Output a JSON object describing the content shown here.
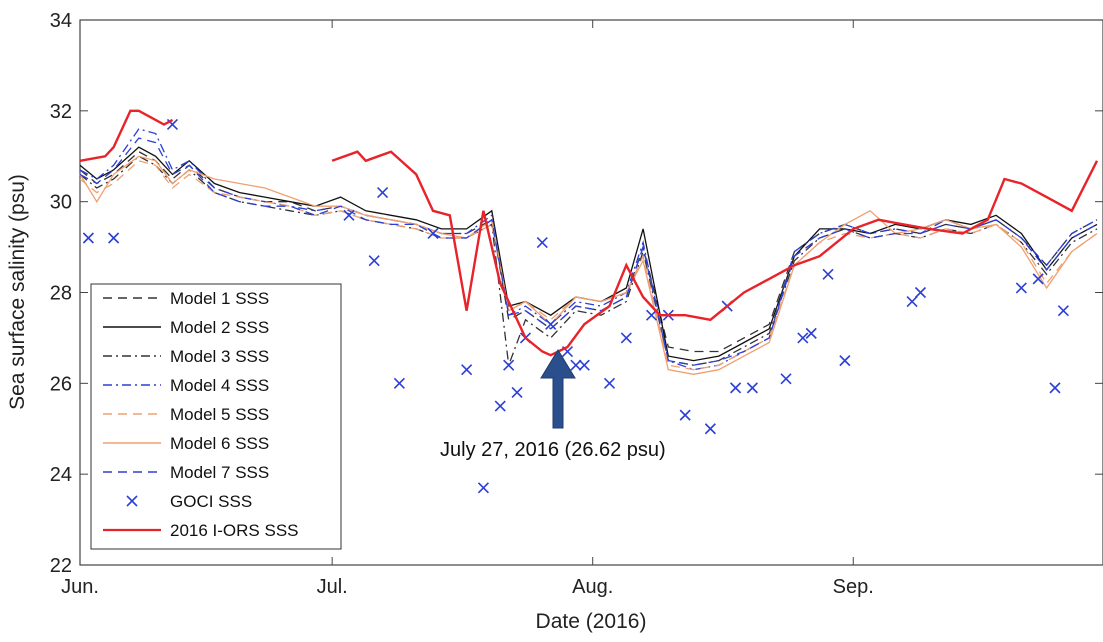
{
  "chart_data": {
    "type": "line",
    "title": "",
    "xlabel": "Date (2016)",
    "ylabel": "Sea surface salinity (psu)",
    "xlim": [
      "2016-06-01",
      "2016-09-30"
    ],
    "ylim": [
      22,
      34
    ],
    "y_ticks": [
      22,
      24,
      26,
      28,
      30,
      32,
      34
    ],
    "x_ticks": [
      {
        "date": "2016-06-01",
        "label": "Jun."
      },
      {
        "date": "2016-07-01",
        "label": "Jul."
      },
      {
        "date": "2016-08-01",
        "label": "Aug."
      },
      {
        "date": "2016-09-01",
        "label": "Sep."
      }
    ],
    "grid": false,
    "legend_position": "bottom-left",
    "annotation": {
      "text": "July 27, 2016 (26.62 psu)",
      "date": "2016-07-27",
      "value": 26.62
    },
    "series": [
      {
        "name": "Model 1 SSS",
        "style": "dashed",
        "color": "#333333",
        "dates": [
          "2016-06-01",
          "2016-06-03",
          "2016-06-05",
          "2016-06-08",
          "2016-06-10",
          "2016-06-12",
          "2016-06-14",
          "2016-06-17",
          "2016-06-20",
          "2016-06-23",
          "2016-06-26",
          "2016-06-29",
          "2016-07-02",
          "2016-07-05",
          "2016-07-08",
          "2016-07-11",
          "2016-07-14",
          "2016-07-17",
          "2016-07-20",
          "2016-07-22",
          "2016-07-24",
          "2016-07-27",
          "2016-07-30",
          "2016-08-02",
          "2016-08-05",
          "2016-08-07",
          "2016-08-10",
          "2016-08-13",
          "2016-08-16",
          "2016-08-19",
          "2016-08-22",
          "2016-08-25",
          "2016-08-28",
          "2016-08-31",
          "2016-09-03",
          "2016-09-06",
          "2016-09-09",
          "2016-09-12",
          "2016-09-15",
          "2016-09-18",
          "2016-09-21",
          "2016-09-24",
          "2016-09-27",
          "2016-09-30"
        ],
        "values": [
          30.7,
          30.4,
          30.6,
          31.1,
          30.9,
          30.5,
          30.8,
          30.3,
          30.1,
          30.0,
          30.0,
          29.8,
          29.9,
          29.7,
          29.6,
          29.5,
          29.3,
          29.3,
          29.6,
          27.4,
          27.6,
          27.2,
          27.7,
          27.6,
          27.9,
          29.0,
          26.8,
          26.7,
          26.7,
          27.0,
          27.3,
          28.9,
          29.3,
          29.5,
          29.3,
          29.4,
          29.3,
          29.5,
          29.4,
          29.6,
          29.2,
          28.6,
          29.3,
          29.6
        ]
      },
      {
        "name": "Model 2 SSS",
        "style": "solid",
        "color": "#111111",
        "dates": [
          "2016-06-01",
          "2016-06-03",
          "2016-06-05",
          "2016-06-08",
          "2016-06-10",
          "2016-06-12",
          "2016-06-14",
          "2016-06-17",
          "2016-06-20",
          "2016-06-23",
          "2016-06-26",
          "2016-06-29",
          "2016-07-02",
          "2016-07-05",
          "2016-07-08",
          "2016-07-11",
          "2016-07-14",
          "2016-07-17",
          "2016-07-20",
          "2016-07-22",
          "2016-07-24",
          "2016-07-27",
          "2016-07-30",
          "2016-08-02",
          "2016-08-05",
          "2016-08-07",
          "2016-08-10",
          "2016-08-13",
          "2016-08-16",
          "2016-08-19",
          "2016-08-22",
          "2016-08-25",
          "2016-08-28",
          "2016-08-31",
          "2016-09-03",
          "2016-09-06",
          "2016-09-09",
          "2016-09-12",
          "2016-09-15",
          "2016-09-18",
          "2016-09-21",
          "2016-09-24",
          "2016-09-27",
          "2016-09-30"
        ],
        "values": [
          30.8,
          30.5,
          30.7,
          31.2,
          31.0,
          30.6,
          30.9,
          30.4,
          30.2,
          30.1,
          30.0,
          29.9,
          30.1,
          29.8,
          29.7,
          29.6,
          29.4,
          29.4,
          29.8,
          27.7,
          27.8,
          27.5,
          27.9,
          27.8,
          28.1,
          29.4,
          26.6,
          26.5,
          26.6,
          26.9,
          27.2,
          28.8,
          29.4,
          29.4,
          29.3,
          29.5,
          29.4,
          29.6,
          29.5,
          29.7,
          29.3,
          28.5,
          29.2,
          29.5
        ]
      },
      {
        "name": "Model 3 SSS",
        "style": "dashdot",
        "color": "#333333",
        "dates": [
          "2016-06-01",
          "2016-06-03",
          "2016-06-05",
          "2016-06-08",
          "2016-06-10",
          "2016-06-12",
          "2016-06-14",
          "2016-06-17",
          "2016-06-20",
          "2016-06-23",
          "2016-06-26",
          "2016-06-29",
          "2016-07-02",
          "2016-07-05",
          "2016-07-08",
          "2016-07-11",
          "2016-07-14",
          "2016-07-17",
          "2016-07-20",
          "2016-07-22",
          "2016-07-24",
          "2016-07-27",
          "2016-07-30",
          "2016-08-02",
          "2016-08-05",
          "2016-08-07",
          "2016-08-10",
          "2016-08-13",
          "2016-08-16",
          "2016-08-19",
          "2016-08-22",
          "2016-08-25",
          "2016-08-28",
          "2016-08-31",
          "2016-09-03",
          "2016-09-06",
          "2016-09-09",
          "2016-09-12",
          "2016-09-15",
          "2016-09-18",
          "2016-09-21",
          "2016-09-24",
          "2016-09-27",
          "2016-09-30"
        ],
        "values": [
          30.6,
          30.3,
          30.5,
          31.0,
          30.8,
          30.4,
          30.7,
          30.2,
          30.0,
          29.9,
          29.8,
          29.7,
          29.8,
          29.6,
          29.5,
          29.4,
          29.2,
          29.2,
          29.5,
          26.4,
          27.4,
          27.0,
          27.6,
          27.5,
          27.8,
          28.9,
          26.5,
          26.4,
          26.5,
          26.8,
          27.1,
          28.7,
          29.2,
          29.4,
          29.2,
          29.3,
          29.2,
          29.4,
          29.3,
          29.5,
          29.1,
          28.4,
          29.1,
          29.4
        ]
      },
      {
        "name": "Model 4 SSS",
        "style": "dashdot",
        "color": "#2c3fd6",
        "dates": [
          "2016-06-01",
          "2016-06-03",
          "2016-06-05",
          "2016-06-08",
          "2016-06-10",
          "2016-06-12",
          "2016-06-14",
          "2016-06-17",
          "2016-06-20",
          "2016-06-23",
          "2016-06-26",
          "2016-06-29",
          "2016-07-02",
          "2016-07-05",
          "2016-07-08",
          "2016-07-11",
          "2016-07-14",
          "2016-07-17",
          "2016-07-20",
          "2016-07-22",
          "2016-07-24",
          "2016-07-27",
          "2016-07-30",
          "2016-08-02",
          "2016-08-05",
          "2016-08-07",
          "2016-08-10",
          "2016-08-13",
          "2016-08-16",
          "2016-08-19",
          "2016-08-22",
          "2016-08-25",
          "2016-08-28",
          "2016-08-31",
          "2016-09-03",
          "2016-09-06",
          "2016-09-09",
          "2016-09-12",
          "2016-09-15",
          "2016-09-18",
          "2016-09-21",
          "2016-09-24",
          "2016-09-27",
          "2016-09-30"
        ],
        "values": [
          30.7,
          30.5,
          30.8,
          31.6,
          31.5,
          30.7,
          30.9,
          30.3,
          30.1,
          30.0,
          29.9,
          29.8,
          29.9,
          29.7,
          29.6,
          29.5,
          29.3,
          29.3,
          29.7,
          27.5,
          27.7,
          27.3,
          27.8,
          27.7,
          28.0,
          29.1,
          26.5,
          26.3,
          26.4,
          26.7,
          27.0,
          28.9,
          29.3,
          29.5,
          29.3,
          29.4,
          29.3,
          29.6,
          29.4,
          29.6,
          29.2,
          28.6,
          29.3,
          29.6
        ]
      },
      {
        "name": "Model 5 SSS",
        "style": "dashed",
        "color": "#f0a070",
        "dates": [
          "2016-06-01",
          "2016-06-03",
          "2016-06-05",
          "2016-06-08",
          "2016-06-10",
          "2016-06-12",
          "2016-06-14",
          "2016-06-17",
          "2016-06-20",
          "2016-06-23",
          "2016-06-26",
          "2016-06-29",
          "2016-07-02",
          "2016-07-05",
          "2016-07-08",
          "2016-07-11",
          "2016-07-14",
          "2016-07-17",
          "2016-07-20",
          "2016-07-22",
          "2016-07-24",
          "2016-07-27",
          "2016-07-30",
          "2016-08-02",
          "2016-08-05",
          "2016-08-07",
          "2016-08-10",
          "2016-08-13",
          "2016-08-16",
          "2016-08-19",
          "2016-08-22",
          "2016-08-25",
          "2016-08-28",
          "2016-08-31",
          "2016-09-03",
          "2016-09-06",
          "2016-09-09",
          "2016-09-12",
          "2016-09-15",
          "2016-09-18",
          "2016-09-21",
          "2016-09-24",
          "2016-09-27",
          "2016-09-30"
        ],
        "values": [
          30.5,
          30.2,
          30.4,
          30.9,
          30.8,
          30.3,
          30.6,
          30.2,
          30.1,
          30.0,
          29.9,
          29.7,
          29.8,
          29.6,
          29.5,
          29.4,
          29.2,
          29.2,
          29.5,
          27.6,
          27.8,
          27.4,
          27.9,
          27.8,
          28.0,
          28.8,
          26.4,
          26.3,
          26.4,
          26.7,
          27.0,
          28.6,
          29.1,
          29.3,
          29.2,
          29.3,
          29.2,
          29.4,
          29.3,
          29.5,
          29.1,
          28.2,
          28.9,
          29.3
        ]
      },
      {
        "name": "Model 6 SSS",
        "style": "solid",
        "color": "#f0a070",
        "dates": [
          "2016-06-01",
          "2016-06-03",
          "2016-06-05",
          "2016-06-08",
          "2016-06-10",
          "2016-06-12",
          "2016-06-14",
          "2016-06-17",
          "2016-06-20",
          "2016-06-23",
          "2016-06-26",
          "2016-06-29",
          "2016-07-02",
          "2016-07-05",
          "2016-07-08",
          "2016-07-11",
          "2016-07-14",
          "2016-07-17",
          "2016-07-20",
          "2016-07-22",
          "2016-07-24",
          "2016-07-27",
          "2016-07-30",
          "2016-08-02",
          "2016-08-05",
          "2016-08-07",
          "2016-08-10",
          "2016-08-13",
          "2016-08-16",
          "2016-08-19",
          "2016-08-22",
          "2016-08-25",
          "2016-08-28",
          "2016-08-31",
          "2016-09-03",
          "2016-09-06",
          "2016-09-09",
          "2016-09-12",
          "2016-09-15",
          "2016-09-18",
          "2016-09-21",
          "2016-09-24",
          "2016-09-27",
          "2016-09-30"
        ],
        "values": [
          30.6,
          30.0,
          30.6,
          31.0,
          30.9,
          30.4,
          30.7,
          30.5,
          30.4,
          30.3,
          30.1,
          29.9,
          29.9,
          29.7,
          29.6,
          29.5,
          29.3,
          29.2,
          29.6,
          27.6,
          27.8,
          27.3,
          27.9,
          27.8,
          28.0,
          28.7,
          26.3,
          26.2,
          26.3,
          26.6,
          26.9,
          28.6,
          29.1,
          29.5,
          29.8,
          29.3,
          29.4,
          29.6,
          29.4,
          29.5,
          29.0,
          28.1,
          28.9,
          29.3
        ]
      },
      {
        "name": "Model 7 SSS",
        "style": "dashed",
        "color": "#2c3fd6",
        "dates": [
          "2016-06-01",
          "2016-06-03",
          "2016-06-05",
          "2016-06-08",
          "2016-06-10",
          "2016-06-12",
          "2016-06-14",
          "2016-06-17",
          "2016-06-20",
          "2016-06-23",
          "2016-06-26",
          "2016-06-29",
          "2016-07-02",
          "2016-07-05",
          "2016-07-08",
          "2016-07-11",
          "2016-07-14",
          "2016-07-17",
          "2016-07-20",
          "2016-07-22",
          "2016-07-24",
          "2016-07-27",
          "2016-07-30",
          "2016-08-02",
          "2016-08-05",
          "2016-08-07",
          "2016-08-10",
          "2016-08-13",
          "2016-08-16",
          "2016-08-19",
          "2016-08-22",
          "2016-08-25",
          "2016-08-28",
          "2016-08-31",
          "2016-09-03",
          "2016-09-06",
          "2016-09-09",
          "2016-09-12",
          "2016-09-15",
          "2016-09-18",
          "2016-09-21",
          "2016-09-24",
          "2016-09-27",
          "2016-09-30"
        ],
        "values": [
          30.6,
          30.4,
          30.7,
          31.4,
          31.3,
          30.6,
          30.8,
          30.2,
          30.0,
          29.9,
          29.9,
          29.7,
          29.9,
          29.6,
          29.5,
          29.5,
          29.2,
          29.2,
          29.6,
          27.5,
          27.6,
          27.2,
          27.7,
          27.6,
          27.9,
          29.0,
          26.5,
          26.4,
          26.5,
          26.7,
          27.0,
          28.8,
          29.2,
          29.4,
          29.2,
          29.3,
          29.3,
          29.5,
          29.4,
          29.6,
          29.2,
          28.5,
          29.2,
          29.5
        ]
      },
      {
        "name": "GOCI SSS",
        "style": "marker-x",
        "color": "#2c3fd6",
        "dates": [
          "2016-06-02",
          "2016-06-05",
          "2016-06-12",
          "2016-07-03",
          "2016-07-06",
          "2016-07-07",
          "2016-07-09",
          "2016-07-13",
          "2016-07-17",
          "2016-07-19",
          "2016-07-21",
          "2016-07-22",
          "2016-07-23",
          "2016-07-24",
          "2016-07-26",
          "2016-07-27",
          "2016-07-29",
          "2016-07-30",
          "2016-07-31",
          "2016-08-03",
          "2016-08-05",
          "2016-08-08",
          "2016-08-10",
          "2016-08-12",
          "2016-08-15",
          "2016-08-17",
          "2016-08-18",
          "2016-08-20",
          "2016-08-24",
          "2016-08-26",
          "2016-08-27",
          "2016-08-29",
          "2016-08-31",
          "2016-09-08",
          "2016-09-09",
          "2016-09-21",
          "2016-09-23",
          "2016-09-25",
          "2016-09-26"
        ],
        "values": [
          29.2,
          29.2,
          31.7,
          29.7,
          28.7,
          30.2,
          26.0,
          29.3,
          26.3,
          23.7,
          25.5,
          26.4,
          25.8,
          27.0,
          29.1,
          27.3,
          26.7,
          26.4,
          26.4,
          26.0,
          27.0,
          27.5,
          27.5,
          25.3,
          25.0,
          27.7,
          25.9,
          25.9,
          26.1,
          27.0,
          27.1,
          28.4,
          26.5,
          27.8,
          28.0,
          28.1,
          28.3,
          25.9,
          27.6
        ]
      },
      {
        "name": "2016 I-ORS SSS",
        "style": "solid",
        "color": "#e8232a",
        "dates": [
          "2016-06-01",
          "2016-06-04",
          "2016-06-05",
          "2016-06-07",
          "2016-06-08",
          "2016-06-10",
          "2016-06-11",
          "2016-06-12",
          null,
          "2016-07-01",
          "2016-07-04",
          "2016-07-05",
          "2016-07-08",
          "2016-07-11",
          "2016-07-13",
          "2016-07-15",
          "2016-07-17",
          "2016-07-19",
          "2016-07-21",
          "2016-07-24",
          "2016-07-26",
          "2016-07-27",
          "2016-07-29",
          "2016-07-31",
          "2016-08-03",
          "2016-08-05",
          "2016-08-07",
          "2016-08-09",
          "2016-08-12",
          "2016-08-15",
          "2016-08-19",
          "2016-08-22",
          "2016-08-25",
          "2016-08-28",
          "2016-09-01",
          "2016-09-04",
          "2016-09-07",
          "2016-09-10",
          "2016-09-14",
          "2016-09-17",
          "2016-09-19",
          "2016-09-21",
          "2016-09-24",
          "2016-09-27",
          "2016-09-30"
        ],
        "values": [
          30.9,
          31.0,
          31.2,
          32.0,
          32.0,
          31.8,
          31.7,
          31.8,
          null,
          30.9,
          31.1,
          30.9,
          31.1,
          30.6,
          29.8,
          29.7,
          27.6,
          29.8,
          28.2,
          27.0,
          26.7,
          26.62,
          26.8,
          27.3,
          27.7,
          28.6,
          27.9,
          27.5,
          27.5,
          27.4,
          28.0,
          28.3,
          28.6,
          28.8,
          29.4,
          29.6,
          29.5,
          29.4,
          29.3,
          29.6,
          30.5,
          30.4,
          30.1,
          29.8,
          30.9
        ]
      }
    ]
  }
}
